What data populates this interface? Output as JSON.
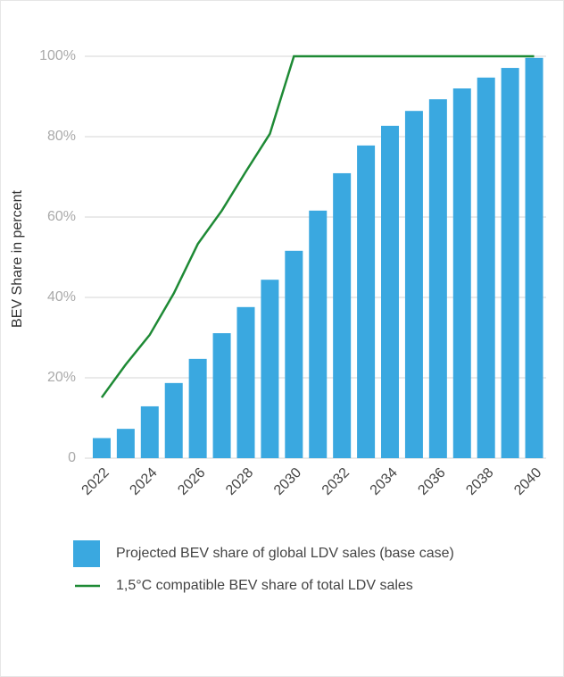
{
  "chart_data": {
    "type": "bar",
    "y_label": "BEV Share in percent",
    "categories": [
      "2022",
      null,
      "2024",
      null,
      "2026",
      null,
      "2028",
      null,
      "2030",
      null,
      "2032",
      null,
      "2034",
      null,
      "2036",
      null,
      "2038",
      null,
      "2040"
    ],
    "series": [
      {
        "name": "Projected BEV share of global LDV sales (base case)",
        "type": "bar",
        "color": "#3aa8e0",
        "values": [
          5,
          7.3,
          12.9,
          18.7,
          24.7,
          31.1,
          37.6,
          44.4,
          51.6,
          61.6,
          70.9,
          77.8,
          82.7,
          86.4,
          89.3,
          92,
          94.7,
          97.1,
          99.6
        ]
      },
      {
        "name": "1,5°C compatible BEV share of total LDV sales",
        "type": "line",
        "color": "#1e8a35",
        "values": [
          15.1,
          23.3,
          30.7,
          41,
          53.3,
          61.6,
          71.3,
          80.7,
          100,
          100,
          100,
          100,
          100,
          100,
          100,
          100,
          100,
          100,
          100
        ]
      }
    ],
    "ylim": [
      0,
      100
    ],
    "yticks": [
      0,
      {
        "value": 20,
        "label": "20%"
      },
      {
        "value": 40,
        "label": "40%"
      },
      {
        "value": 60,
        "label": "60%"
      },
      {
        "value": 80,
        "label": "80%"
      },
      {
        "value": 100,
        "label": "100%"
      }
    ],
    "grid": true
  }
}
